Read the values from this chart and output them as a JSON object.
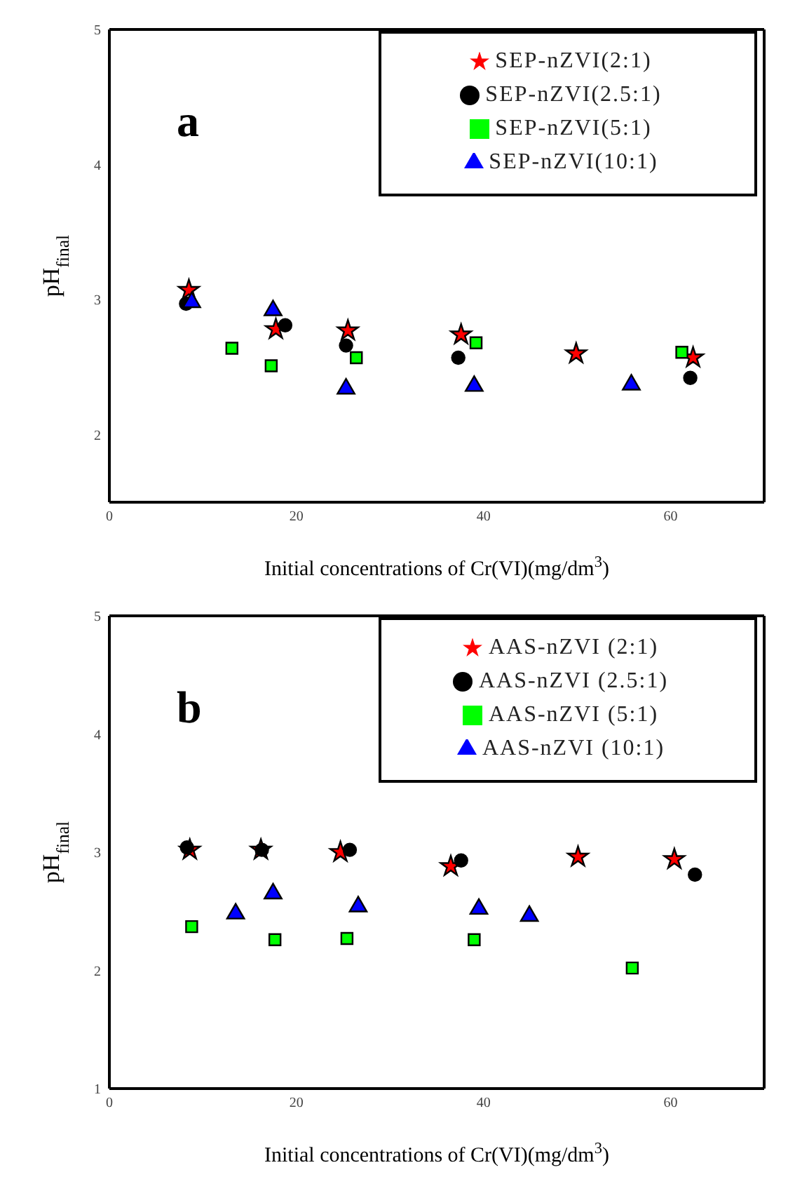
{
  "chart_data": [
    {
      "type": "scatter",
      "xlabel": "Initial concentrations of Cr(VI)(mg/dm$^{3}$)",
      "ylabel": "pH$_{final}$",
      "annotations": [
        "a"
      ],
      "xlim": [
        0,
        70
      ],
      "xticks": [
        0,
        20,
        40,
        60
      ],
      "ylim": [
        1.5,
        5
      ],
      "yticks": [
        2,
        3,
        4,
        5
      ],
      "legend": "top right",
      "series": [
        {
          "name": "SEP-nZVI(2:1)",
          "color": "#ff0000",
          "marker": "star",
          "x": [
            8.5,
            17.8,
            25.5,
            37.6,
            49.9,
            62.4
          ],
          "values": [
            3.07,
            2.78,
            2.77,
            2.74,
            2.6,
            2.57
          ]
        },
        {
          "name": "SEP-nZVI(2.5:1)",
          "color": "#000000",
          "marker": "circle",
          "x": [
            8.2,
            18.8,
            25.3,
            37.3,
            62.1
          ],
          "values": [
            2.97,
            2.81,
            2.66,
            2.57,
            2.42
          ]
        },
        {
          "name": "SEP-nZVI(5:1)",
          "color": "#00ff00",
          "marker": "square",
          "x": [
            13.1,
            17.3,
            26.4,
            39.2,
            61.2
          ],
          "values": [
            2.64,
            2.51,
            2.57,
            2.68,
            2.61
          ]
        },
        {
          "name": "SEP-nZVI(10:1)",
          "color": "#0000ff",
          "marker": "triangle",
          "x": [
            8.8,
            17.5,
            25.3,
            39,
            55.8
          ],
          "values": [
            2.98,
            2.92,
            2.34,
            2.36,
            2.37
          ]
        }
      ]
    },
    {
      "type": "scatter",
      "xlabel": "Initial concentrations of Cr(VI)(mg/dm$^{3}$)",
      "ylabel": "pH$_{final}$",
      "annotations": [
        "b"
      ],
      "xlim": [
        0,
        70
      ],
      "xticks": [
        0,
        20,
        40,
        60
      ],
      "ylim": [
        1,
        5
      ],
      "yticks": [
        1,
        2,
        3,
        4,
        5
      ],
      "legend": "top right",
      "series": [
        {
          "name": "AAS-nZVI (2:1)",
          "color": "#ff0000",
          "marker": "star",
          "x": [
            8.6,
            16.2,
            24.7,
            36.5,
            50.1,
            60.4
          ],
          "values": [
            3.02,
            3.02,
            3.0,
            2.88,
            2.96,
            2.94
          ]
        },
        {
          "name": "AAS-nZVI (2.5:1)",
          "color": "#000000",
          "marker": "circle",
          "x": [
            8.3,
            16.3,
            25.7,
            37.6,
            62.6
          ],
          "values": [
            3.04,
            3.02,
            3.02,
            2.93,
            2.81
          ]
        },
        {
          "name": "AAS-nZVI (5:1)",
          "color": "#00ff00",
          "marker": "square",
          "x": [
            8.8,
            17.7,
            25.4,
            39,
            55.9
          ],
          "values": [
            2.37,
            2.26,
            2.27,
            2.26,
            2.02
          ]
        },
        {
          "name": "AAS-nZVI (10:1)",
          "color": "#0000ff",
          "marker": "triangle",
          "x": [
            13.5,
            17.5,
            26.6,
            39.5,
            44.9
          ],
          "values": [
            2.48,
            2.65,
            2.54,
            2.52,
            2.46
          ]
        }
      ]
    }
  ]
}
